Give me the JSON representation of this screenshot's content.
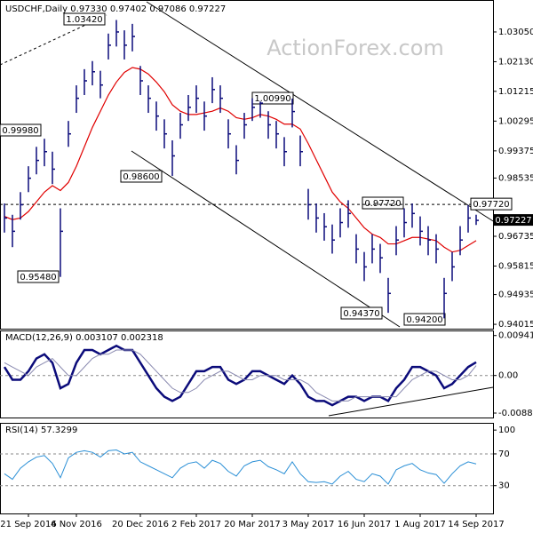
{
  "watermark": "ActionForex.com",
  "chart_data": [
    {
      "type": "ohlc",
      "title": "USDCHF,Daily  0.97330 0.97402 0.97086 0.97227",
      "color": "#0b0b7a",
      "ylim": [
        0.9388,
        1.0401
      ],
      "yticks": [
        {
          "value": 1.0305,
          "label": "1.03050"
        },
        {
          "value": 1.0213,
          "label": "1.02130"
        },
        1.01215,
        1.00295,
        0.99375,
        0.98535,
        0.96735,
        0.95815,
        0.94935,
        0.94015
      ],
      "high": [
        0.9775,
        0.974,
        0.981,
        0.989,
        0.995,
        0.9975,
        0.9935,
        0.976,
        1.003,
        1.014,
        1.019,
        1.0215,
        1.0185,
        1.03,
        1.0342,
        1.031,
        1.033,
        1.02,
        1.014,
        1.009,
        1.0035,
        0.997,
        1.0055,
        1.011,
        1.014,
        1.009,
        1.0165,
        1.014,
        1.0035,
        0.9955,
        1.0055,
        1.01,
        1.009,
        1.006,
        1.003,
        0.998,
        1.0099,
        0.9985,
        0.982,
        0.9775,
        0.9745,
        0.971,
        0.976,
        0.9785,
        0.968,
        0.9625,
        0.968,
        0.965,
        0.9545,
        0.9705,
        0.976,
        0.9775,
        0.9735,
        0.9705,
        0.968,
        0.9545,
        0.9625,
        0.9705,
        0.977,
        0.97402
      ],
      "low": [
        0.9685,
        0.964,
        0.9725,
        0.981,
        0.9865,
        0.989,
        0.9835,
        0.9548,
        0.995,
        1.0055,
        1.011,
        1.014,
        1.01,
        1.022,
        1.026,
        1.022,
        1.0245,
        1.011,
        1.0055,
        1.0,
        0.9945,
        0.986,
        0.9975,
        1.003,
        1.0055,
        1.0,
        1.0085,
        1.0055,
        0.9945,
        0.9865,
        0.9975,
        1.003,
        1.004,
        0.9975,
        0.9945,
        0.989,
        1.001,
        0.989,
        0.9725,
        0.9685,
        0.966,
        0.962,
        0.967,
        0.97,
        0.959,
        0.9535,
        0.959,
        0.956,
        0.9437,
        0.9615,
        0.967,
        0.97,
        0.9645,
        0.9615,
        0.959,
        0.942,
        0.9535,
        0.9615,
        0.9685,
        0.97086
      ],
      "close": [
        0.973,
        0.9689,
        0.9771,
        0.9853,
        0.9908,
        0.9935,
        0.9881,
        0.9689,
        0.999,
        1.01,
        1.0154,
        1.0182,
        1.0141,
        1.0264,
        1.0305,
        1.0264,
        1.0291,
        1.0154,
        1.01,
        1.0045,
        0.999,
        0.9922,
        1.0018,
        1.0072,
        1.01,
        1.0045,
        1.0127,
        1.01,
        0.999,
        0.9908,
        1.0018,
        1.0072,
        1.0085,
        1.0018,
        0.999,
        0.9935,
        1.0059,
        0.9935,
        0.9771,
        0.973,
        0.9703,
        0.9662,
        0.9716,
        0.9744,
        0.9634,
        0.9579,
        0.9634,
        0.9607,
        0.9497,
        0.9662,
        0.9716,
        0.9744,
        0.9689,
        0.9662,
        0.9634,
        0.9497,
        0.9579,
        0.9662,
        0.973,
        0.97227
      ],
      "series": [
        {
          "color": "#e00000",
          "values": [
            0.9735,
            0.9725,
            0.973,
            0.975,
            0.978,
            0.981,
            0.983,
            0.9815,
            0.984,
            0.989,
            0.995,
            1.001,
            1.006,
            1.011,
            1.015,
            1.018,
            1.0195,
            1.019,
            1.0175,
            1.015,
            1.012,
            1.008,
            1.006,
            1.005,
            1.005,
            1.0055,
            1.006,
            1.007,
            1.006,
            1.004,
            1.0035,
            1.004,
            1.005,
            1.0045,
            1.0035,
            1.002,
            1.002,
            1.0005,
            0.996,
            0.991,
            0.986,
            0.981,
            0.978,
            0.976,
            0.973,
            0.97,
            0.968,
            0.967,
            0.965,
            0.965,
            0.966,
            0.967,
            0.967,
            0.9665,
            0.966,
            0.964,
            0.9625,
            0.963,
            0.9645,
            0.966
          ]
        }
      ],
      "hline": {
        "value": 0.9772,
        "label": "0.97720"
      },
      "last": {
        "value": 0.97227,
        "label": "0.97227"
      },
      "annotations": [
        "1.03420",
        "0.99980",
        "0.98600",
        "1.00990",
        "0.95480",
        "0.97720",
        "0.94370",
        "0.94200"
      ]
    },
    {
      "type": "line",
      "title": "MACD(12,26,9) 0.003107 0.002318",
      "ylim": [
        -0.0099,
        0.0104
      ],
      "yticks": [
        0.009411,
        {
          "value": 0,
          "label": "0.00"
        },
        -0.008852
      ],
      "series": [
        {
          "color": "#0b0b7a",
          "values": [
            0.002,
            -0.001,
            -0.001,
            0.001,
            0.004,
            0.005,
            0.003,
            -0.003,
            -0.002,
            0.003,
            0.006,
            0.006,
            0.005,
            0.006,
            0.007,
            0.006,
            0.006,
            0.003,
            0.0,
            -0.003,
            -0.005,
            -0.006,
            -0.005,
            -0.002,
            0.001,
            0.001,
            0.002,
            0.002,
            -0.001,
            -0.002,
            -0.001,
            0.001,
            0.001,
            0.0,
            -0.001,
            -0.002,
            0.0,
            -0.002,
            -0.005,
            -0.006,
            -0.006,
            -0.007,
            -0.006,
            -0.005,
            -0.005,
            -0.006,
            -0.005,
            -0.005,
            -0.006,
            -0.003,
            -0.001,
            0.002,
            0.002,
            0.001,
            0.0,
            -0.003,
            -0.002,
            0.0,
            0.002,
            0.003107
          ]
        },
        {
          "color": "#8a8ab0",
          "values": [
            0.003,
            0.002,
            0.001,
            0.0,
            0.002,
            0.003,
            0.004,
            0.002,
            0.0,
            0.0,
            0.002,
            0.004,
            0.005,
            0.005,
            0.006,
            0.006,
            0.006,
            0.005,
            0.003,
            0.001,
            -0.001,
            -0.003,
            -0.004,
            -0.004,
            -0.003,
            -0.001,
            0.0,
            0.001,
            0.001,
            0.0,
            -0.001,
            -0.001,
            0.0,
            0.0,
            0.0,
            -0.001,
            -0.001,
            -0.001,
            -0.002,
            -0.004,
            -0.005,
            -0.006,
            -0.006,
            -0.006,
            -0.005,
            -0.005,
            -0.005,
            -0.005,
            -0.005,
            -0.005,
            -0.003,
            -0.001,
            0.0,
            0.001,
            0.001,
            0.0,
            -0.001,
            -0.001,
            0.0,
            0.002318
          ]
        }
      ]
    },
    {
      "type": "line",
      "title": "RSI(14) 57.3299",
      "ylim": [
        -5,
        108
      ],
      "yticks": [
        100,
        70,
        30
      ],
      "series": [
        {
          "color": "#2a8fd6",
          "values": [
            45,
            38,
            52,
            60,
            66,
            68,
            58,
            40,
            65,
            72,
            74,
            72,
            66,
            74,
            75,
            70,
            72,
            60,
            55,
            50,
            45,
            40,
            52,
            58,
            60,
            52,
            62,
            58,
            48,
            42,
            55,
            60,
            62,
            54,
            50,
            45,
            60,
            45,
            35,
            34,
            35,
            32,
            42,
            48,
            38,
            35,
            45,
            42,
            32,
            50,
            55,
            58,
            50,
            46,
            44,
            33,
            45,
            55,
            60,
            57.3299
          ]
        }
      ],
      "categories": [
        null,
        null,
        null,
        "21 Sep 2016",
        null,
        null,
        null,
        null,
        null,
        "4 Nov 2016",
        null,
        null,
        null,
        null,
        null,
        null,
        null,
        "20 Dec 2016",
        null,
        null,
        null,
        null,
        null,
        null,
        "2 Feb 2017",
        null,
        null,
        null,
        null,
        null,
        null,
        "20 Mar 2017",
        null,
        null,
        null,
        null,
        null,
        null,
        "3 May 2017",
        null,
        null,
        null,
        null,
        null,
        null,
        "16 Jun 2017",
        null,
        null,
        null,
        null,
        null,
        null,
        "1 Aug 2017",
        null,
        null,
        null,
        null,
        null,
        null,
        "14 Sep 2017"
      ]
    }
  ]
}
